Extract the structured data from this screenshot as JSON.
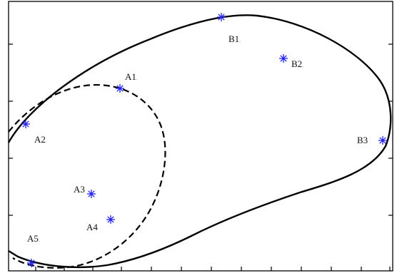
{
  "diagram": {
    "marker_color": "#2222ee",
    "curve_color": "#000000",
    "points": [
      {
        "id": "A1",
        "label": "A1",
        "suffix": "."
      },
      {
        "id": "A2",
        "label": "A2",
        "suffix": "."
      },
      {
        "id": "A3",
        "label": "A3",
        "suffix": ""
      },
      {
        "id": "A4",
        "label": "A4",
        "suffix": ""
      },
      {
        "id": "A5",
        "label": "A5",
        "suffix": "."
      },
      {
        "id": "B1",
        "label": "B1",
        "suffix": "."
      },
      {
        "id": "B2",
        "label": "B2",
        "suffix": "."
      },
      {
        "id": "B3",
        "label": "B3",
        "suffix": ""
      }
    ],
    "curves": [
      {
        "id": "cluster-a-boundary",
        "style": "dashed"
      },
      {
        "id": "cluster-b-boundary",
        "style": "solid"
      }
    ]
  }
}
